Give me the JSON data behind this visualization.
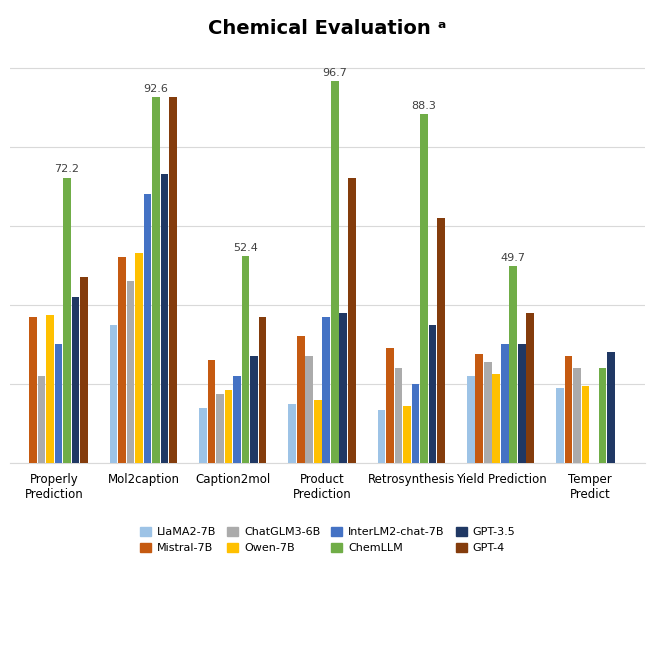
{
  "title": "Chemical Evaluation ᵃ",
  "categories": [
    "Properly\nPrediction",
    "Mol2caption",
    "Caption2mol",
    "Product\nPrediction",
    "Retrosynthesis",
    "Yield Prediction",
    "Temper\nPredict"
  ],
  "models": [
    "LlaMA2-7B",
    "Mistral-7B",
    "ChatGLM3-6B",
    "Owen-7B",
    "InterLM2-chat-7B",
    "ChemLLM",
    "GPT-3.5",
    "GPT-4"
  ],
  "colors": [
    "#9DC3E6",
    "#C55A11",
    "#ABABAB",
    "#FFC000",
    "#4472C4",
    "#70AD47",
    "#203864",
    "#843C0C"
  ],
  "values": {
    "LlaMA2-7B": [
      0,
      35.0,
      14.0,
      15.0,
      13.5,
      22.0,
      19.0
    ],
    "Mistral-7B": [
      37.0,
      52.0,
      26.0,
      32.0,
      29.0,
      27.5,
      27.0
    ],
    "ChatGLM3-6B": [
      22.0,
      46.0,
      17.5,
      27.0,
      24.0,
      25.5,
      24.0
    ],
    "Owen-7B": [
      37.5,
      53.0,
      18.5,
      16.0,
      14.5,
      22.5,
      19.5
    ],
    "InterLM2-chat-7B": [
      30.0,
      68.0,
      22.0,
      37.0,
      20.0,
      30.0,
      0
    ],
    "ChemLLM": [
      72.2,
      92.6,
      52.4,
      96.7,
      88.3,
      49.7,
      24.0
    ],
    "GPT-3.5": [
      42.0,
      73.0,
      27.0,
      38.0,
      35.0,
      30.0,
      28.0
    ],
    "GPT-4": [
      47.0,
      92.6,
      37.0,
      72.0,
      62.0,
      38.0,
      0
    ]
  },
  "annotations": {
    "Properly\nPrediction": {
      "model": "ChemLLM",
      "value": "72.2"
    },
    "Mol2caption": {
      "model": "ChemLLM",
      "value": "92.6"
    },
    "Caption2mol": {
      "model": "ChemLLM",
      "value": "52.4"
    },
    "Product\nPrediction": {
      "model": "ChemLLM",
      "value": "96.7"
    },
    "Retrosynthesis": {
      "model": "ChemLLM",
      "value": "88.3"
    },
    "Yield Prediction": {
      "model": "ChemLLM",
      "value": "49.7"
    }
  },
  "ylim": [
    0,
    105
  ],
  "background_color": "#FFFFFF",
  "grid_color": "#D9D9D9",
  "title_fontsize": 14
}
